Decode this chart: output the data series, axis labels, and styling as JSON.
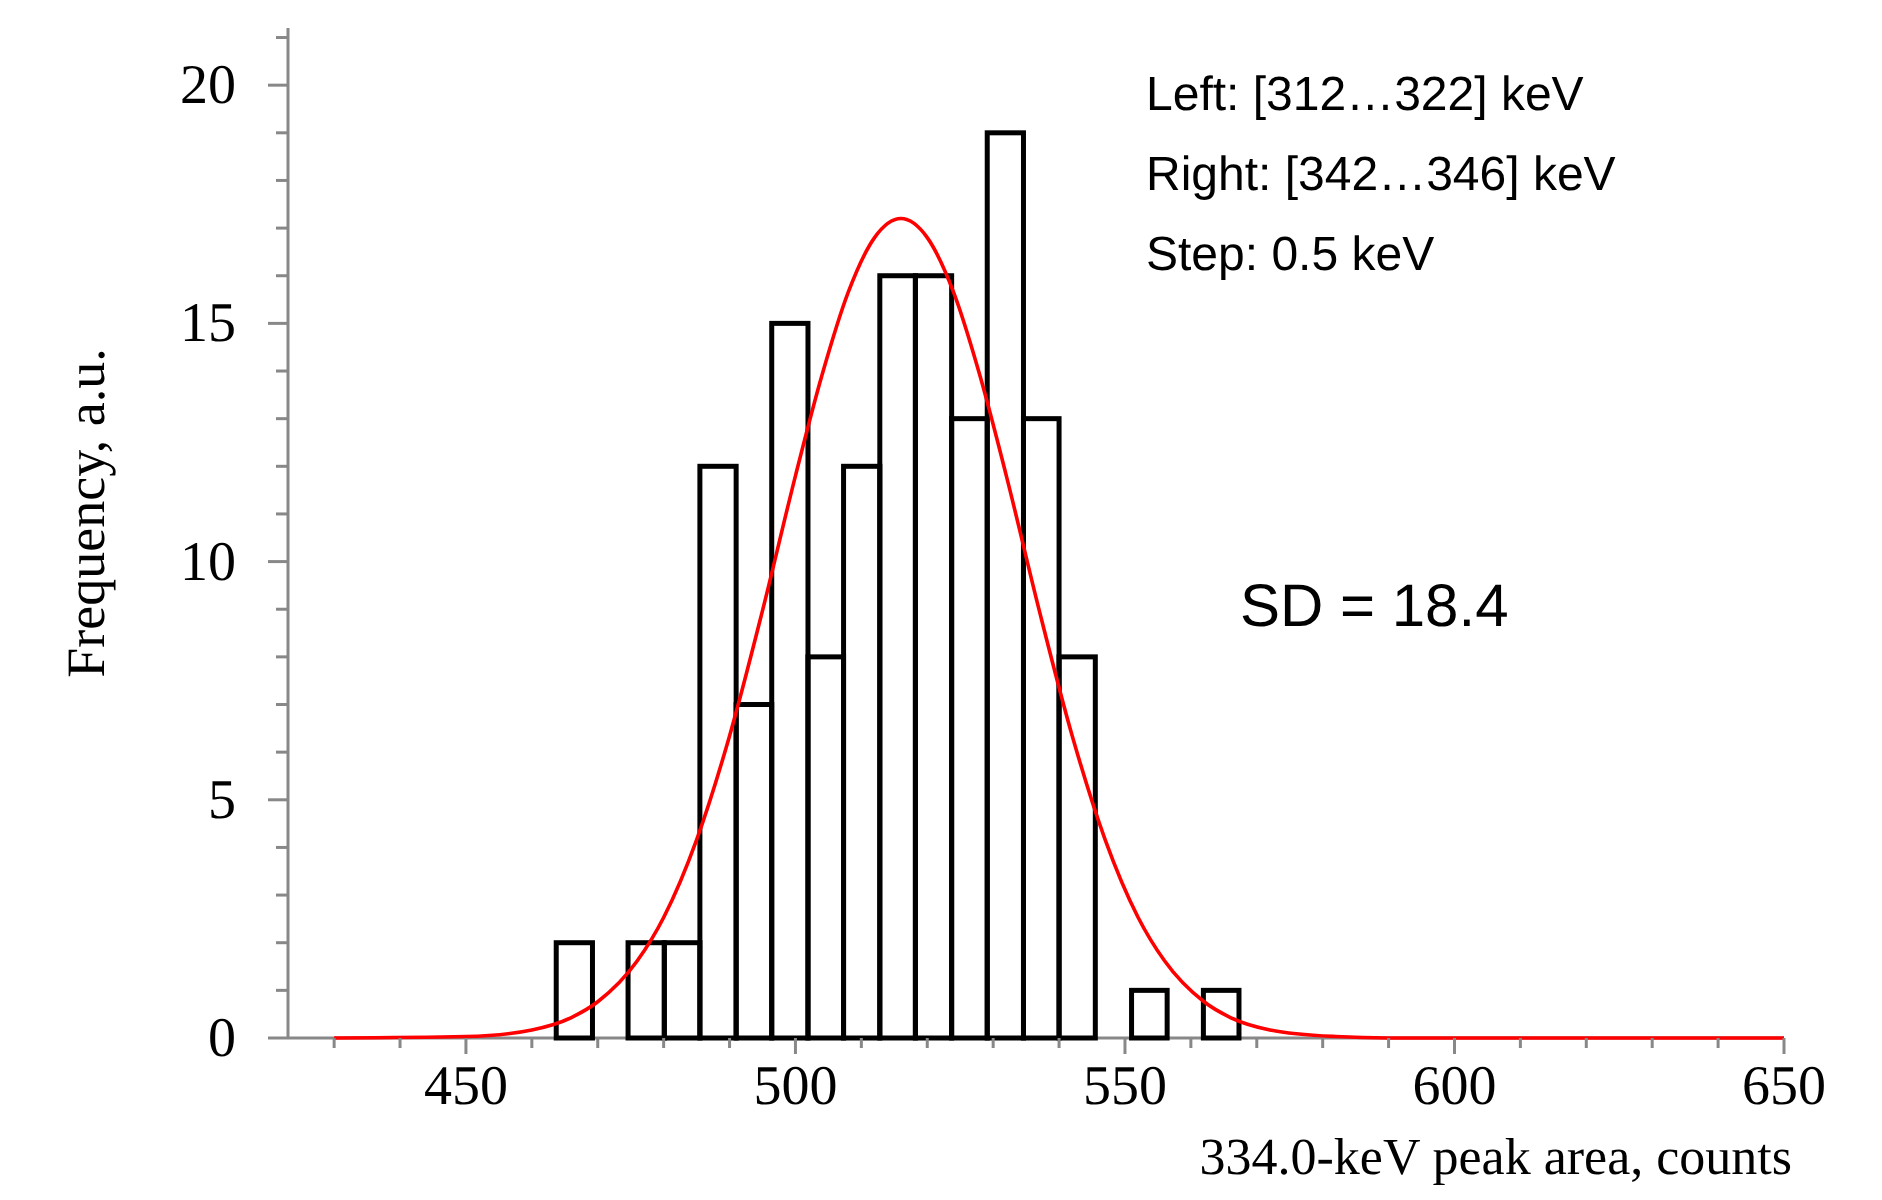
{
  "chart_data": {
    "type": "histogram",
    "xlabel": "334.0-keV peak area, counts",
    "ylabel": "Frequency, a.u.",
    "bins": [
      463.7,
      469.2,
      474.6,
      480.1,
      485.5,
      491.0,
      496.4,
      501.9,
      507.3,
      512.8,
      518.2,
      523.7,
      529.1,
      534.6,
      540.0,
      545.5,
      551.0,
      556.4,
      561.9,
      567.3
    ],
    "values": [
      2,
      0,
      2,
      2,
      12,
      7,
      15,
      8,
      12,
      16,
      16,
      13,
      19,
      13,
      8,
      0,
      1,
      0,
      1
    ],
    "color": "#000000",
    "series": [
      {
        "type": "line",
        "color": "#ff0000",
        "x": [
          430,
          450,
          460,
          466,
          470,
          476,
          480,
          485,
          490,
          495,
          500,
          504,
          508,
          512,
          516,
          520,
          524,
          528,
          532,
          537,
          542,
          547,
          552,
          556,
          562,
          566,
          572,
          582,
          590,
          650
        ],
        "values": [
          0,
          0.03,
          0.17,
          0.43,
          0.76,
          1.62,
          2.53,
          4.16,
          6.34,
          8.97,
          11.8,
          13.9,
          15.65,
          16.8,
          17.2,
          16.8,
          15.65,
          13.9,
          11.8,
          8.97,
          6.34,
          4.16,
          2.53,
          1.62,
          0.76,
          0.43,
          0.17,
          0.03,
          0,
          0
        ]
      }
    ],
    "xlim": [
      423,
      650
    ],
    "ylim": [
      0,
      21.2
    ],
    "xticks": [
      {
        "value": 430,
        "label": null
      },
      {
        "value": 440,
        "label": null
      },
      450,
      {
        "value": 460,
        "label": null
      },
      {
        "value": 470,
        "label": null
      },
      {
        "value": 480,
        "label": null
      },
      {
        "value": 490,
        "label": null
      },
      500,
      {
        "value": 510,
        "label": null
      },
      {
        "value": 520,
        "label": null
      },
      {
        "value": 530,
        "label": null
      },
      {
        "value": 540,
        "label": null
      },
      550,
      {
        "value": 560,
        "label": null
      },
      {
        "value": 570,
        "label": null
      },
      {
        "value": 580,
        "label": null
      },
      {
        "value": 590,
        "label": null
      },
      600,
      {
        "value": 610,
        "label": null
      },
      {
        "value": 620,
        "label": null
      },
      {
        "value": 630,
        "label": null
      },
      {
        "value": 640,
        "label": null
      },
      650
    ],
    "yticks": [
      0,
      {
        "value": 1,
        "label": null
      },
      {
        "value": 2,
        "label": null
      },
      {
        "value": 3,
        "label": null
      },
      {
        "value": 4,
        "label": null
      },
      5,
      {
        "value": 6,
        "label": null
      },
      {
        "value": 7,
        "label": null
      },
      {
        "value": 8,
        "label": null
      },
      {
        "value": 9,
        "label": null
      },
      10,
      {
        "value": 11,
        "label": null
      },
      {
        "value": 12,
        "label": null
      },
      {
        "value": 13,
        "label": null
      },
      {
        "value": 14,
        "label": null
      },
      15,
      {
        "value": 16,
        "label": null
      },
      {
        "value": 17,
        "label": null
      },
      {
        "value": 18,
        "label": null
      },
      {
        "value": 19,
        "label": null
      },
      20,
      {
        "value": 21,
        "label": null
      }
    ],
    "annotations": [
      "Left: [312…322] keV",
      "Right: [342…346] keV",
      "Step: 0.5 keV",
      "SD = 18.4"
    ]
  }
}
